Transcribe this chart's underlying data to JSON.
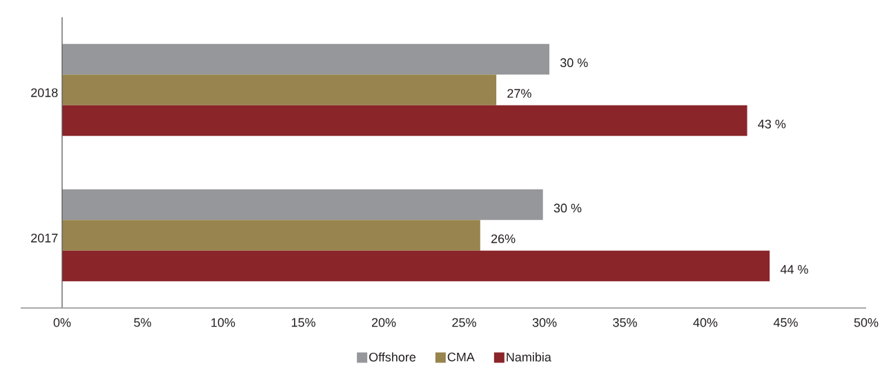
{
  "chart_data": {
    "type": "bar",
    "orientation": "horizontal",
    "categories": [
      "2018",
      "2017"
    ],
    "series": [
      {
        "name": "Offshore",
        "color": "#96979b",
        "values": [
          30.3,
          29.9
        ],
        "value_labels": [
          "30 %",
          "30 %"
        ]
      },
      {
        "name": "CMA",
        "color": "#98844e",
        "values": [
          27.0,
          26.0
        ],
        "value_labels": [
          "27%",
          "26%"
        ]
      },
      {
        "name": "Namibia",
        "color": "#8a2529",
        "values": [
          42.6,
          44.0
        ],
        "value_labels": [
          "43 %",
          "44 %"
        ]
      }
    ],
    "xlim": [
      0,
      50
    ],
    "xticks": [
      {
        "value": 0,
        "label": "0%"
      },
      {
        "value": 5,
        "label": "5%"
      },
      {
        "value": 10,
        "label": "10%"
      },
      {
        "value": 15,
        "label": "15%"
      },
      {
        "value": 20,
        "label": "20%"
      },
      {
        "value": 25,
        "label": "25%"
      },
      {
        "value": 30,
        "label": "30%"
      },
      {
        "value": 35,
        "label": "35%"
      },
      {
        "value": 40,
        "label": "40%"
      },
      {
        "value": 45,
        "label": "45%"
      },
      {
        "value": 50,
        "label": "50%"
      }
    ],
    "legend": "bottom"
  }
}
